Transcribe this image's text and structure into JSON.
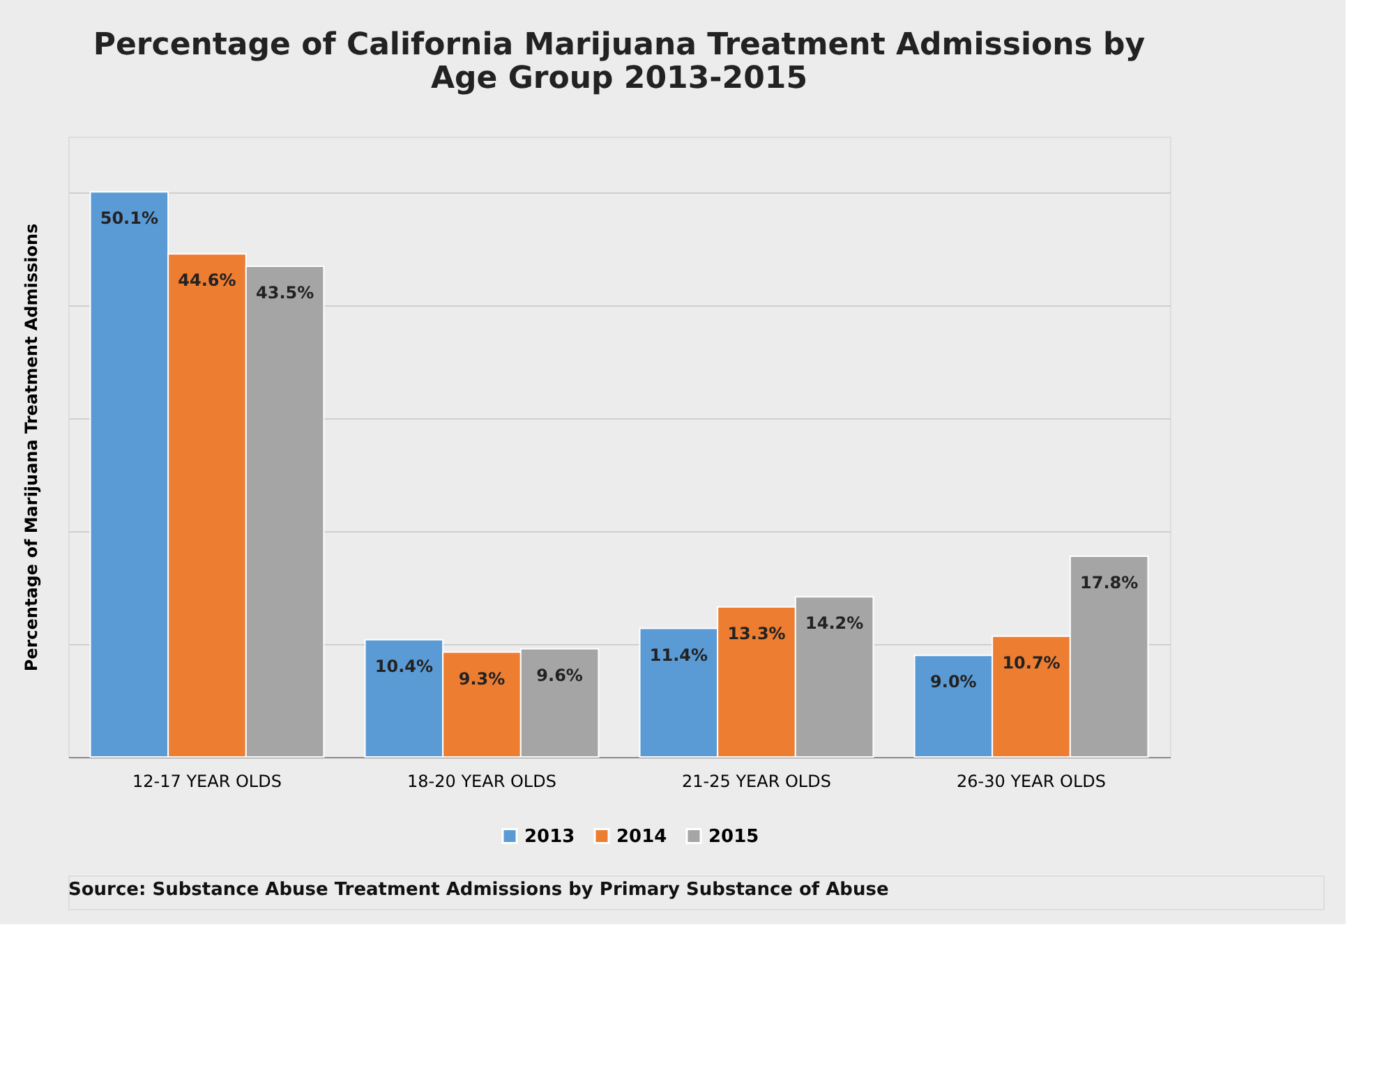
{
  "chart_data": {
    "type": "bar",
    "title": [
      "Percentage of California Marijuana Treatment Admissions by",
      "Age Group 2013-2015"
    ],
    "ylabel": "Percentage of Marijuana Treatment Admissions",
    "categories": [
      "12-17 YEAR OLDS",
      "18-20 YEAR OLDS",
      "21-25 YEAR OLDS",
      "26-30 YEAR OLDS"
    ],
    "series": [
      {
        "name": "2013",
        "color": "#5b9bd5",
        "values": [
          50.1,
          10.4,
          11.4,
          9.0
        ],
        "value_labels": [
          "50.1%",
          "10.4%",
          "11.4%",
          "9.0%"
        ]
      },
      {
        "name": "2014",
        "color": "#ed7d31",
        "values": [
          44.6,
          9.3,
          13.3,
          10.7
        ],
        "value_labels": [
          "44.6%",
          "9.3%",
          "13.3%",
          "10.7%"
        ]
      },
      {
        "name": "2015",
        "color": "#a5a5a5",
        "values": [
          43.5,
          9.6,
          14.2,
          17.8
        ],
        "value_labels": [
          "43.5%",
          "9.6%",
          "14.2%",
          "17.8%"
        ]
      }
    ],
    "tick_labels": "x",
    "grid": "y",
    "legend": "bottom",
    "annotations": [
      "Source:  Substance Abuse Treatment Admissions by Primary Substance of Abuse"
    ]
  }
}
